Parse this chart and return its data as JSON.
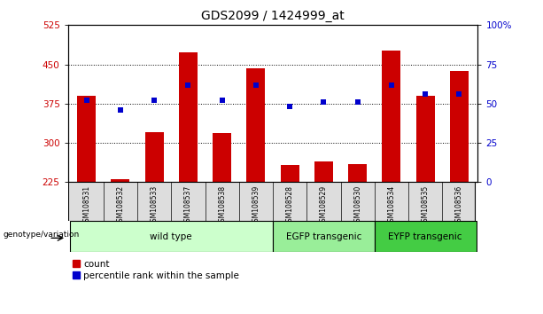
{
  "title": "GDS2099 / 1424999_at",
  "samples": [
    "GSM108531",
    "GSM108532",
    "GSM108533",
    "GSM108537",
    "GSM108538",
    "GSM108539",
    "GSM108528",
    "GSM108529",
    "GSM108530",
    "GSM108534",
    "GSM108535",
    "GSM108536"
  ],
  "count_values": [
    390,
    230,
    320,
    473,
    318,
    443,
    258,
    265,
    260,
    477,
    390,
    437
  ],
  "percentile_values": [
    52,
    46,
    52,
    62,
    52,
    62,
    48,
    51,
    51,
    62,
    56,
    56
  ],
  "ylim_left": [
    225,
    525
  ],
  "ylim_right": [
    0,
    100
  ],
  "yticks_left": [
    225,
    300,
    375,
    450,
    525
  ],
  "yticks_right": [
    0,
    25,
    50,
    75,
    100
  ],
  "hlines": [
    300,
    375,
    450
  ],
  "bar_color_red": "#cc0000",
  "bar_color_blue": "#0000cc",
  "groups": [
    {
      "label": "wild type",
      "indices": [
        0,
        1,
        2,
        3,
        4,
        5
      ],
      "color": "#ccffcc"
    },
    {
      "label": "EGFP transgenic",
      "indices": [
        6,
        7,
        8
      ],
      "color": "#99ee99"
    },
    {
      "label": "EYFP transgenic",
      "indices": [
        9,
        10,
        11
      ],
      "color": "#44cc44"
    }
  ],
  "xlabel_genotype": "genotype/variation",
  "legend_count": "count",
  "legend_percentile": "percentile rank within the sample",
  "tick_label_color_left": "#cc0000",
  "tick_label_color_right": "#0000cc",
  "bar_width": 0.55,
  "blue_marker_size": 5,
  "bg_color": "#ffffff"
}
